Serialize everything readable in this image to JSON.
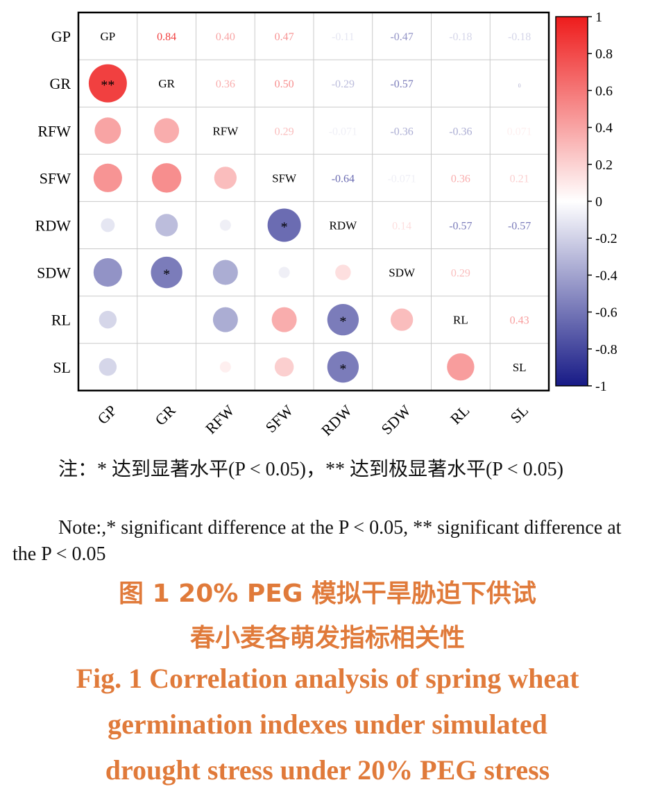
{
  "chart_data": {
    "type": "heatmap",
    "subtype": "correlation-matrix",
    "variables": [
      "GP",
      "GR",
      "RFW",
      "SFW",
      "RDW",
      "SDW",
      "RL",
      "SL"
    ],
    "colorbar": {
      "min": -1,
      "max": 1,
      "ticks": [
        "1",
        "0.8",
        "0.6",
        "0.4",
        "0.2",
        "0",
        "-0.2",
        "-0.4",
        "-0.6",
        "-0.8",
        "-1"
      ]
    },
    "colors": {
      "positive": "#ee1c1c",
      "neutral": "#ffffff",
      "negative": "#171a86"
    },
    "upper_labels": [
      {
        "row": "GP",
        "col": "GR",
        "text": "0.84",
        "value": 0.84
      },
      {
        "row": "GP",
        "col": "RFW",
        "text": "0.40",
        "value": 0.4
      },
      {
        "row": "GP",
        "col": "SFW",
        "text": "0.47",
        "value": 0.47
      },
      {
        "row": "GP",
        "col": "RDW",
        "text": "-0.11",
        "value": -0.11
      },
      {
        "row": "GP",
        "col": "SDW",
        "text": "-0.47",
        "value": -0.47
      },
      {
        "row": "GP",
        "col": "RL",
        "text": "-0.18",
        "value": -0.18
      },
      {
        "row": "GP",
        "col": "SL",
        "text": "-0.18",
        "value": -0.18
      },
      {
        "row": "GR",
        "col": "RFW",
        "text": "0.36",
        "value": 0.36
      },
      {
        "row": "GR",
        "col": "SFW",
        "text": "0.50",
        "value": 0.5
      },
      {
        "row": "GR",
        "col": "RDW",
        "text": "-0.29",
        "value": -0.29
      },
      {
        "row": "GR",
        "col": "SDW",
        "text": "-0.57",
        "value": -0.57
      },
      {
        "row": "GR",
        "col": "SL",
        "text": "0",
        "value": 0.0
      },
      {
        "row": "RFW",
        "col": "SFW",
        "text": "0.29",
        "value": 0.29
      },
      {
        "row": "RFW",
        "col": "RDW",
        "text": "-0.071",
        "value": -0.071
      },
      {
        "row": "RFW",
        "col": "SDW",
        "text": "-0.36",
        "value": -0.36
      },
      {
        "row": "RFW",
        "col": "RL",
        "text": "-0.36",
        "value": -0.36
      },
      {
        "row": "RFW",
        "col": "SL",
        "text": "0.071",
        "value": 0.071
      },
      {
        "row": "SFW",
        "col": "RDW",
        "text": "-0.64",
        "value": -0.64
      },
      {
        "row": "SFW",
        "col": "SDW",
        "text": "-0.071",
        "value": -0.071
      },
      {
        "row": "SFW",
        "col": "RL",
        "text": "0.36",
        "value": 0.36
      },
      {
        "row": "SFW",
        "col": "SL",
        "text": "0.21",
        "value": 0.21
      },
      {
        "row": "RDW",
        "col": "SDW",
        "text": "0.14",
        "value": 0.14
      },
      {
        "row": "RDW",
        "col": "RL",
        "text": "-0.57",
        "value": -0.57
      },
      {
        "row": "RDW",
        "col": "SL",
        "text": "-0.57",
        "value": -0.57
      },
      {
        "row": "SDW",
        "col": "RL",
        "text": "0.29",
        "value": 0.29
      },
      {
        "row": "RL",
        "col": "SL",
        "text": "0.43",
        "value": 0.43
      }
    ],
    "lower_circles": [
      {
        "row": "GR",
        "col": "GP",
        "value": 0.84,
        "mark": "**"
      },
      {
        "row": "RFW",
        "col": "GP",
        "value": 0.4,
        "mark": ""
      },
      {
        "row": "RFW",
        "col": "GR",
        "value": 0.36,
        "mark": ""
      },
      {
        "row": "SFW",
        "col": "GP",
        "value": 0.47,
        "mark": ""
      },
      {
        "row": "SFW",
        "col": "GR",
        "value": 0.5,
        "mark": ""
      },
      {
        "row": "SFW",
        "col": "RFW",
        "value": 0.29,
        "mark": ""
      },
      {
        "row": "RDW",
        "col": "GP",
        "value": -0.11,
        "mark": ""
      },
      {
        "row": "RDW",
        "col": "GR",
        "value": -0.29,
        "mark": ""
      },
      {
        "row": "RDW",
        "col": "RFW",
        "value": -0.071,
        "mark": ""
      },
      {
        "row": "RDW",
        "col": "SFW",
        "value": -0.64,
        "mark": "*"
      },
      {
        "row": "SDW",
        "col": "GP",
        "value": -0.47,
        "mark": ""
      },
      {
        "row": "SDW",
        "col": "GR",
        "value": -0.57,
        "mark": "*"
      },
      {
        "row": "SDW",
        "col": "RFW",
        "value": -0.36,
        "mark": ""
      },
      {
        "row": "SDW",
        "col": "SFW",
        "value": -0.071,
        "mark": ""
      },
      {
        "row": "SDW",
        "col": "RDW",
        "value": 0.14,
        "mark": ""
      },
      {
        "row": "RL",
        "col": "GP",
        "value": -0.18,
        "mark": ""
      },
      {
        "row": "RL",
        "col": "RFW",
        "value": -0.36,
        "mark": ""
      },
      {
        "row": "RL",
        "col": "SFW",
        "value": 0.36,
        "mark": ""
      },
      {
        "row": "RL",
        "col": "RDW",
        "value": -0.57,
        "mark": "*"
      },
      {
        "row": "RL",
        "col": "SDW",
        "value": 0.29,
        "mark": ""
      },
      {
        "row": "SL",
        "col": "GP",
        "value": -0.18,
        "mark": ""
      },
      {
        "row": "SL",
        "col": "RFW",
        "value": 0.071,
        "mark": ""
      },
      {
        "row": "SL",
        "col": "SFW",
        "value": 0.21,
        "mark": ""
      },
      {
        "row": "SL",
        "col": "RDW",
        "value": -0.57,
        "mark": "*"
      },
      {
        "row": "SL",
        "col": "RL",
        "value": 0.43,
        "mark": ""
      }
    ]
  },
  "notes": {
    "cn": "注：* 达到显著水平(P < 0.05)，** 达到极显著水平(P < 0.05)",
    "en": "Note:,* significant difference at the P < 0.05, ** significant difference at the P < 0.05"
  },
  "caption": {
    "cn_line1": "图 1   20% PEG 模拟干旱胁迫下供试",
    "cn_line2": "春小麦各萌发指标相关性",
    "en_line1": "Fig. 1    Correlation analysis of spring wheat",
    "en_line2": "germination indexes under simulated",
    "en_line3": "drought stress under 20% PEG stress"
  }
}
